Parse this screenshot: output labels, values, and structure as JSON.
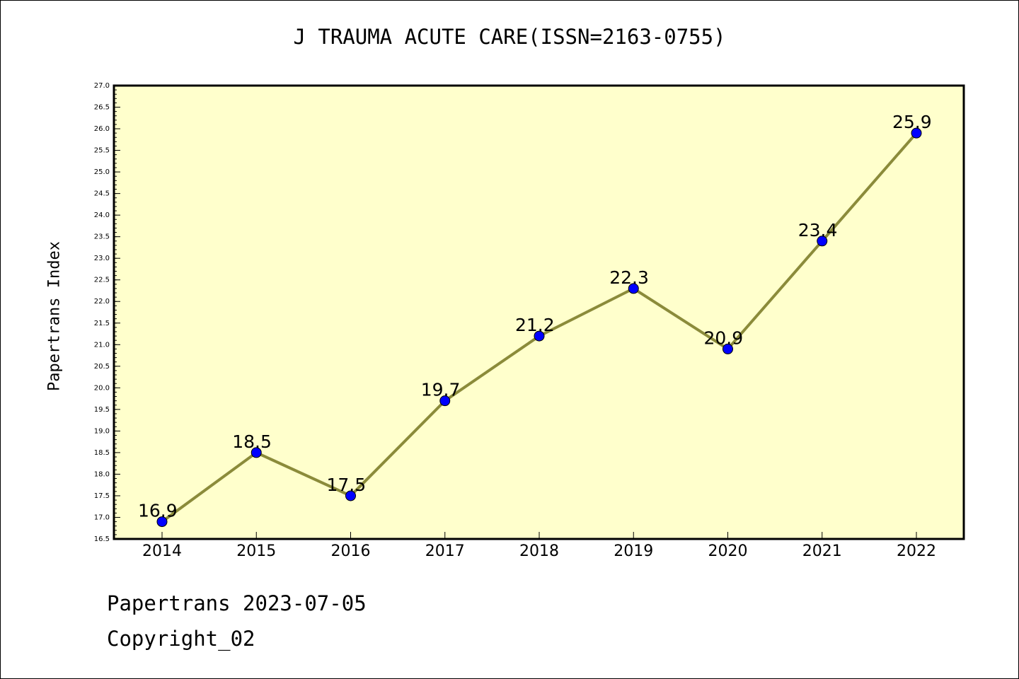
{
  "chart_data": {
    "type": "line",
    "title": "J TRAUMA ACUTE CARE(ISSN=2163-0755)",
    "xlabel": "",
    "ylabel": "Papertrans Index",
    "categories": [
      "2014",
      "2015",
      "2016",
      "2017",
      "2018",
      "2019",
      "2020",
      "2021",
      "2022"
    ],
    "values": [
      16.9,
      18.5,
      17.5,
      19.7,
      21.2,
      22.3,
      20.9,
      23.4,
      25.9
    ],
    "value_labels": [
      "16.9",
      "18.5",
      "17.5",
      "19.7",
      "21.2",
      "22.3",
      "20.9",
      "23.4",
      "25.9"
    ],
    "ylim": [
      16.5,
      27.0
    ],
    "y_tick_step": 0.5,
    "y_minor_step": 0.1,
    "grid": false,
    "legend": "none",
    "colors": {
      "plot_background": "#ffffcc",
      "line": "#8b8b3a",
      "marker": "#0000ff",
      "axes": "#000000"
    }
  },
  "footer": {
    "date_line": "Papertrans 2023-07-05",
    "copyright_line": "Copyright_02"
  }
}
